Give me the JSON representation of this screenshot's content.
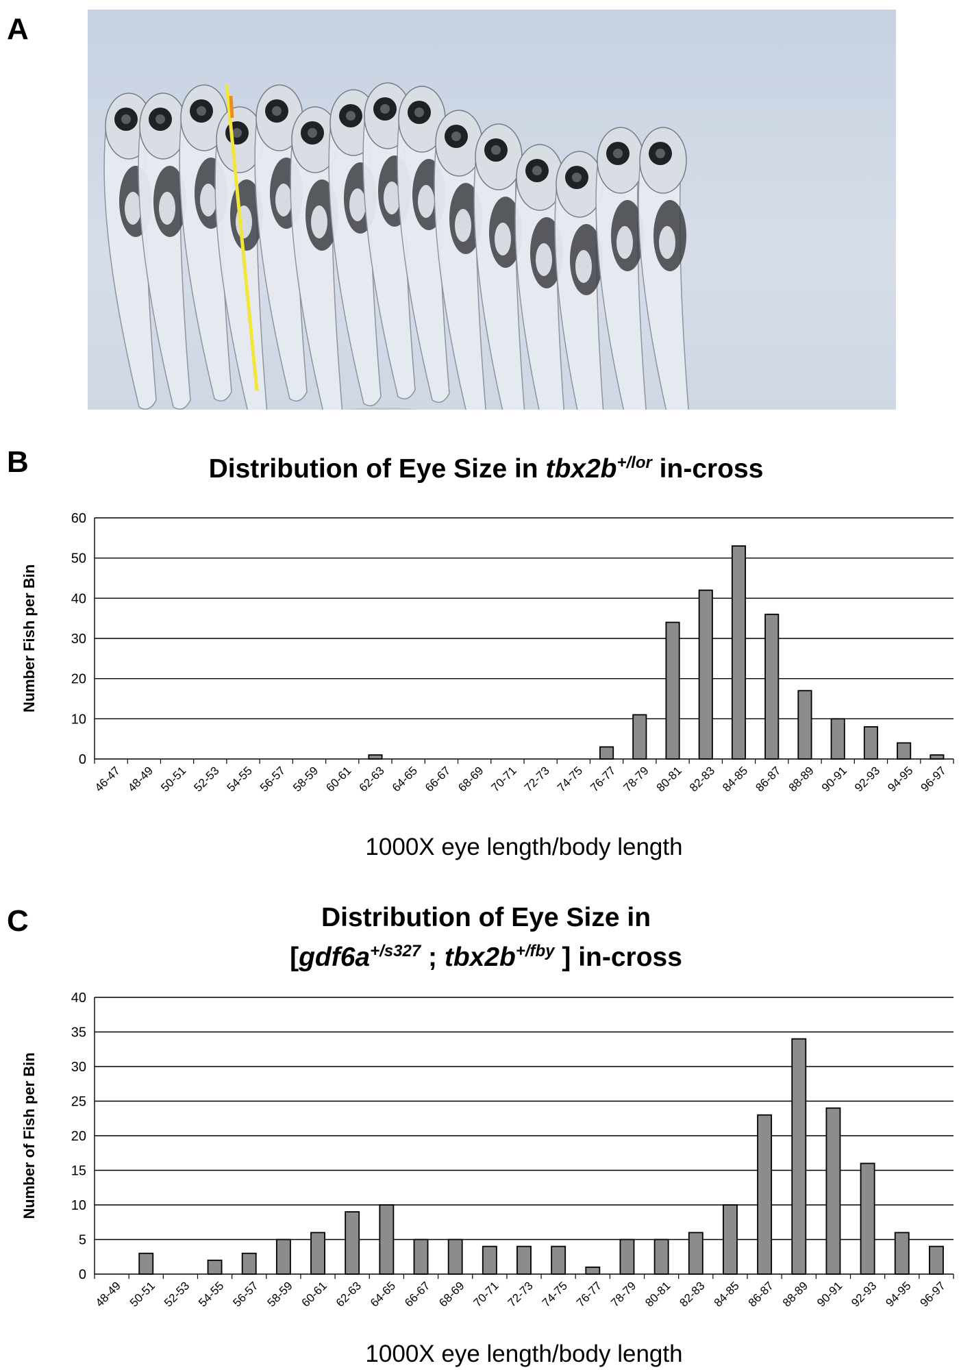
{
  "panels": {
    "a": {
      "letter": "A"
    },
    "b": {
      "letter": "B",
      "title_text": "Distribution of Eye Size in ",
      "title_gene": "tbx2b",
      "title_sup": "+/lor",
      "title_suffix": " in-cross"
    },
    "c": {
      "letter": "C",
      "title_line1": "Distribution of Eye Size in",
      "title_open": "[",
      "title_gene1": "gdf6a",
      "title_sup1": "+/s327",
      "title_sep": " ; ",
      "title_gene2": "tbx2b",
      "title_sup2": "+/fby",
      "title_close": " ] in-cross"
    }
  },
  "colors": {
    "bar_fill": "#8c8c8c",
    "bar_stroke": "#000000",
    "grid": "#000000"
  },
  "chart_data": [
    {
      "type": "bar",
      "xlabel": "1000X eye length/body length",
      "ylabel": "Number Fish per Bin",
      "ylim": [
        0,
        60
      ],
      "yticks": [
        0,
        10,
        20,
        30,
        40,
        50,
        60
      ],
      "grid": true,
      "categories": [
        "46-47",
        "48-49",
        "50-51",
        "52-53",
        "54-55",
        "56-57",
        "58-59",
        "60-61",
        "62-63",
        "64-65",
        "66-67",
        "68-69",
        "70-71",
        "72-73",
        "74-75",
        "76-77",
        "78-79",
        "80-81",
        "82-83",
        "84-85",
        "86-87",
        "88-89",
        "90-91",
        "92-93",
        "94-95",
        "96-97"
      ],
      "values": [
        0,
        0,
        0,
        0,
        0,
        0,
        0,
        0,
        1,
        0,
        0,
        0,
        0,
        0,
        0,
        3,
        11,
        34,
        42,
        53,
        36,
        17,
        10,
        8,
        4,
        1
      ]
    },
    {
      "type": "bar",
      "xlabel": "1000X eye length/body length",
      "ylabel": "Number of Fish per Bin",
      "ylim": [
        0,
        40
      ],
      "yticks": [
        0,
        5,
        10,
        15,
        20,
        25,
        30,
        35,
        40
      ],
      "grid": true,
      "categories": [
        "48-49",
        "50-51",
        "52-53",
        "54-55",
        "56-57",
        "58-59",
        "60-61",
        "62-63",
        "64-65",
        "66-67",
        "68-69",
        "70-71",
        "72-73",
        "74-75",
        "76-77",
        "78-79",
        "80-81",
        "82-83",
        "84-85",
        "86-87",
        "88-89",
        "90-91",
        "92-93",
        "94-95",
        "96-97"
      ],
      "values": [
        0,
        3,
        0,
        2,
        3,
        5,
        6,
        9,
        10,
        5,
        5,
        4,
        4,
        4,
        1,
        5,
        5,
        6,
        10,
        23,
        34,
        24,
        16,
        6,
        4
      ]
    }
  ]
}
